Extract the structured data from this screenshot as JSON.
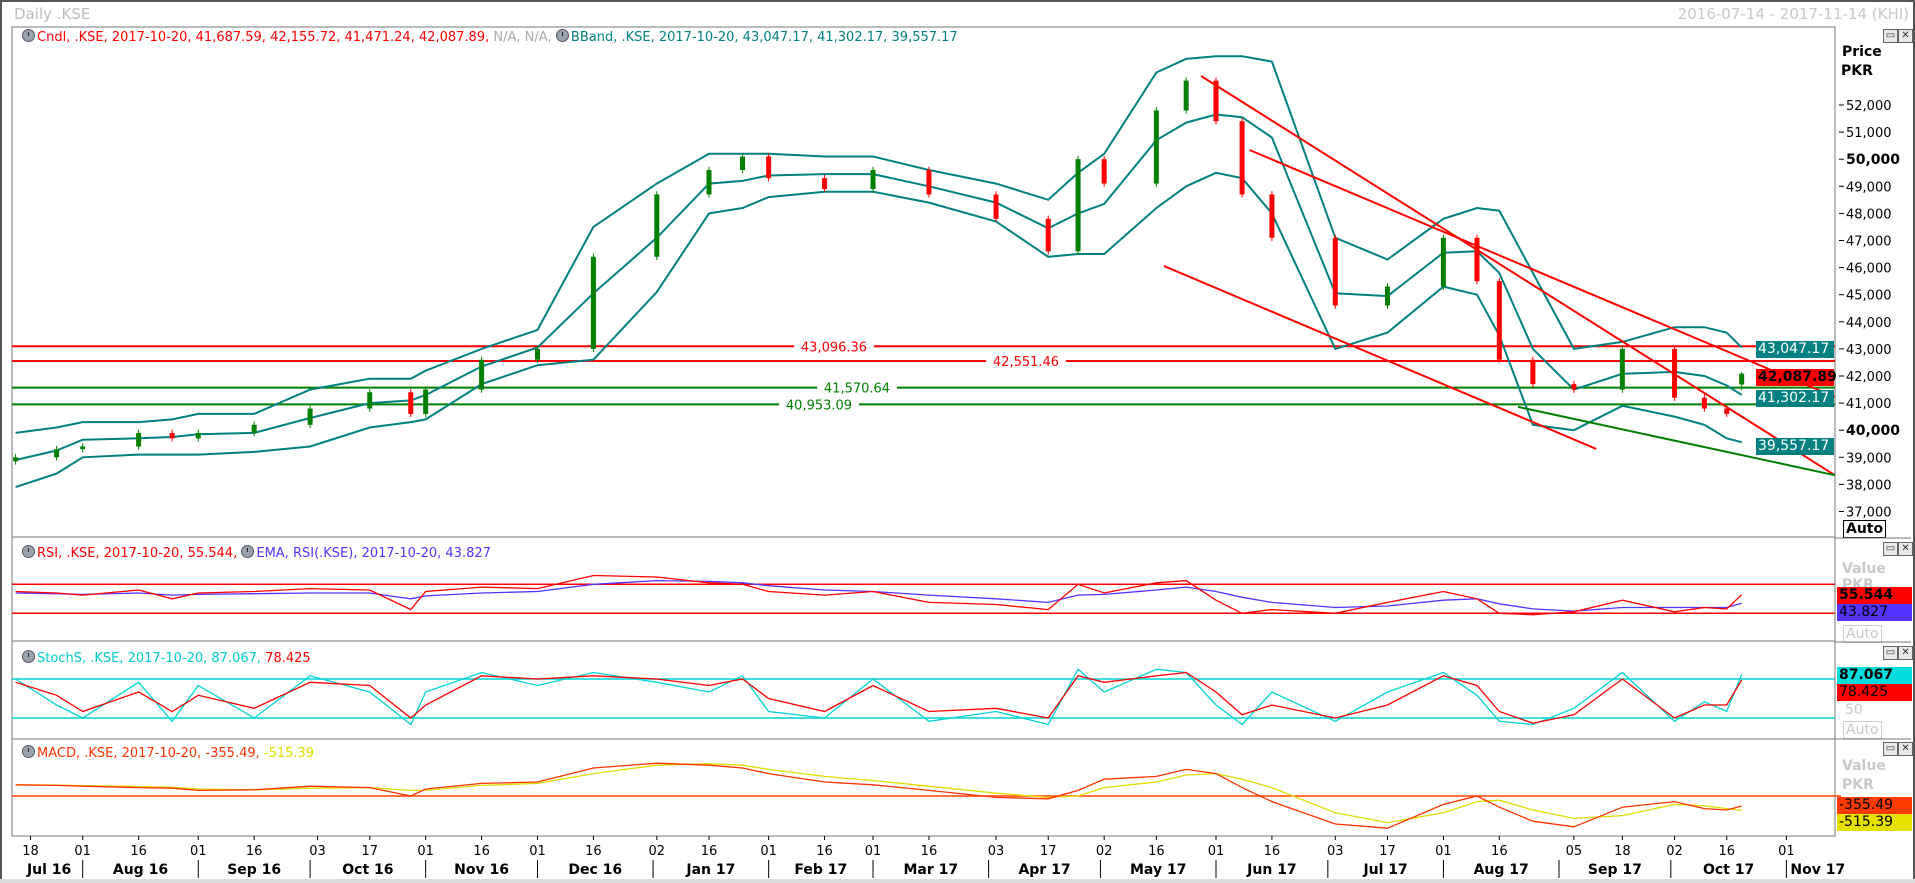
{
  "header": {
    "title": "Daily .KSE",
    "date_range": "2016-07-14 - 2017-11-14 (KHI)"
  },
  "legends": {
    "candle": "Cndl, .KSE, 2017-10-20, 41,687.59, 42,155.72, 41,471.24, 42,087.89,",
    "candle_na": "N/A, N/A,",
    "bband": "BBand, .KSE, 2017-10-20, 43,047.17, 41,302.17, 39,557.17",
    "rsi": "RSI, .KSE, 2017-10-20, 55.544,",
    "ema": "EMA, RSI(.KSE), 2017-10-20, 43.827",
    "stoch": "StochS, .KSE, 2017-10-20, 87.067,",
    "stoch_d": "78.425",
    "macd": "MACD, .KSE, 2017-10-20, -355.49,",
    "macd_signal": "-515.39"
  },
  "axis": {
    "price_title": "Price",
    "price_unit": "PKR",
    "value_title": "Value",
    "auto": "Auto",
    "stoch_mid": "50",
    "price_ticks": [
      "52,000",
      "51,000",
      "50,000",
      "49,000",
      "48,000",
      "47,000",
      "46,000",
      "45,000",
      "44,000",
      "43,000",
      "42,000",
      "41,000",
      "40,000",
      "39,000",
      "38,000",
      "37,000"
    ],
    "price_tick_values": [
      52000,
      51000,
      50000,
      49000,
      48000,
      47000,
      46000,
      45000,
      44000,
      43000,
      42000,
      41000,
      40000,
      39000,
      38000,
      37000
    ],
    "bold_ticks": [
      50000,
      40000
    ]
  },
  "last_values": {
    "bb_upper": "43,047.17",
    "close": "42,087.89",
    "bb_mid": "41,302.17",
    "bb_lower": "39,557.17",
    "rsi": "55.544",
    "ema": "43.827",
    "stoch_k": "87.067",
    "stoch_d": "78.425",
    "macd": "-355.49",
    "macd_signal": "-515.39"
  },
  "colors": {
    "up": "#008000",
    "down": "#ff0000",
    "bband": "#008080",
    "rsi": "#ff0000",
    "ema": "#5533ff",
    "stoch_k": "#00d4d4",
    "stoch_d": "#ff0000",
    "macd": "#ff3300",
    "macd_signal": "#e0dc00",
    "support": "#008000",
    "resistance": "#ff0000"
  },
  "x_axis": {
    "day_ticks": [
      [
        "2016-07-18",
        "18"
      ],
      [
        "2016-08-01",
        "01"
      ],
      [
        "2016-08-16",
        "16"
      ],
      [
        "2016-09-01",
        "01"
      ],
      [
        "2016-09-16",
        "16"
      ],
      [
        "2016-10-03",
        "03"
      ],
      [
        "2016-10-17",
        "17"
      ],
      [
        "2016-11-01",
        "01"
      ],
      [
        "2016-11-16",
        "16"
      ],
      [
        "2016-12-01",
        "01"
      ],
      [
        "2016-12-16",
        "16"
      ],
      [
        "2017-01-02",
        "02"
      ],
      [
        "2017-01-16",
        "16"
      ],
      [
        "2017-02-01",
        "01"
      ],
      [
        "2017-02-16",
        "16"
      ],
      [
        "2017-03-01",
        "01"
      ],
      [
        "2017-03-16",
        "16"
      ],
      [
        "2017-04-03",
        "03"
      ],
      [
        "2017-04-17",
        "17"
      ],
      [
        "2017-05-02",
        "02"
      ],
      [
        "2017-05-16",
        "16"
      ],
      [
        "2017-06-01",
        "01"
      ],
      [
        "2017-06-16",
        "16"
      ],
      [
        "2017-07-03",
        "03"
      ],
      [
        "2017-07-17",
        "17"
      ],
      [
        "2017-08-01",
        "01"
      ],
      [
        "2017-08-16",
        "16"
      ],
      [
        "2017-09-05",
        "05"
      ],
      [
        "2017-09-18",
        "18"
      ],
      [
        "2017-10-02",
        "02"
      ],
      [
        "2017-10-16",
        "16"
      ],
      [
        "2017-11-01",
        "01"
      ]
    ],
    "months": [
      [
        "2016-07-14",
        "Jul 16"
      ],
      [
        "2016-08-01",
        "Aug 16"
      ],
      [
        "2016-09-01",
        "Sep 16"
      ],
      [
        "2016-10-01",
        "Oct 16"
      ],
      [
        "2016-11-01",
        "Nov 16"
      ],
      [
        "2016-12-01",
        "Dec 16"
      ],
      [
        "2017-01-01",
        "Jan 17"
      ],
      [
        "2017-02-01",
        "Feb 17"
      ],
      [
        "2017-03-01",
        "Mar 17"
      ],
      [
        "2017-04-01",
        "Apr 17"
      ],
      [
        "2017-05-01",
        "May 17"
      ],
      [
        "2017-06-01",
        "Jun 17"
      ],
      [
        "2017-07-01",
        "Jul 17"
      ],
      [
        "2017-08-01",
        "Aug 17"
      ],
      [
        "2017-09-01",
        "Sep 17"
      ],
      [
        "2017-10-01",
        "Oct 17"
      ],
      [
        "2017-11-01",
        "Nov 17"
      ]
    ],
    "range": [
      "2016-07-14",
      "2017-11-14"
    ]
  },
  "chart_data": {
    "type": "candlestick",
    "ylim": [
      36800,
      54500
    ],
    "dates": [
      "2016-07-14",
      "2016-07-25",
      "2016-08-01",
      "2016-08-16",
      "2016-08-25",
      "2016-09-01",
      "2016-09-16",
      "2016-10-01",
      "2016-10-17",
      "2016-10-28",
      "2016-11-01",
      "2016-11-16",
      "2016-12-01",
      "2016-12-16",
      "2017-01-02",
      "2017-01-16",
      "2017-01-25",
      "2017-02-01",
      "2017-02-16",
      "2017-03-01",
      "2017-03-16",
      "2017-04-03",
      "2017-04-17",
      "2017-04-25",
      "2017-05-02",
      "2017-05-16",
      "2017-05-24",
      "2017-06-01",
      "2017-06-08",
      "2017-06-16",
      "2017-07-03",
      "2017-07-17",
      "2017-08-01",
      "2017-08-10",
      "2017-08-16",
      "2017-08-25",
      "2017-09-05",
      "2017-09-18",
      "2017-10-02",
      "2017-10-10",
      "2017-10-16",
      "2017-10-20"
    ],
    "close": [
      39000,
      39300,
      39400,
      39900,
      39700,
      39900,
      40200,
      40800,
      41400,
      40600,
      41500,
      42600,
      43000,
      46400,
      48700,
      49600,
      50100,
      49300,
      48900,
      49600,
      48700,
      47800,
      46600,
      50000,
      49100,
      51800,
      52900,
      51400,
      48700,
      47100,
      44600,
      45300,
      47100,
      45500,
      42600,
      41700,
      41500,
      43000,
      41200,
      40800,
      40600,
      42087.89
    ],
    "last_candle": {
      "open": 41687.59,
      "high": 42155.72,
      "low": 41471.24,
      "close": 42087.89
    },
    "bb_upper": [
      39900,
      40100,
      40300,
      40300,
      40400,
      40600,
      40600,
      41500,
      41900,
      41900,
      42200,
      43000,
      43700,
      47500,
      49100,
      50200,
      50200,
      50200,
      50100,
      50100,
      49600,
      49100,
      48500,
      49500,
      50200,
      53200,
      53700,
      53800,
      53800,
      53600,
      47100,
      46300,
      47800,
      48200,
      48100,
      45800,
      43000,
      43260,
      43800,
      43800,
      43600,
      43047.17
    ],
    "bb_lower": [
      37900,
      38400,
      39000,
      39100,
      39100,
      39100,
      39200,
      39400,
      40100,
      40300,
      40400,
      41700,
      42400,
      42600,
      45100,
      48000,
      48200,
      48600,
      48800,
      48800,
      48400,
      47700,
      46400,
      46500,
      46500,
      48200,
      49000,
      49500,
      49300,
      48000,
      43000,
      43600,
      45300,
      45000,
      43500,
      40200,
      40000,
      40900,
      40500,
      40200,
      39700,
      39557.17
    ],
    "hlines": [
      {
        "value": 43096.36,
        "label": "43,096.36",
        "kind": "resistance"
      },
      {
        "value": 42551.46,
        "label": "42,551.46",
        "kind": "resistance"
      },
      {
        "value": 41570.64,
        "label": "41,570.64",
        "kind": "support"
      },
      {
        "value": 40953.09,
        "label": "40,953.09",
        "kind": "support"
      }
    ],
    "trendlines": [
      {
        "kind": "resistance",
        "from": [
          "2017-05-28",
          53070
        ],
        "to": [
          "2017-11-14",
          38340
        ]
      },
      {
        "kind": "resistance",
        "from": [
          "2017-06-10",
          50340
        ],
        "to": [
          "2017-11-14",
          41230
        ]
      },
      {
        "kind": "resistance",
        "from": [
          "2017-05-18",
          46060
        ],
        "to": [
          "2017-09-11",
          39310
        ]
      },
      {
        "kind": "support",
        "from": [
          "2017-08-21",
          40860
        ],
        "to": [
          "2017-11-14",
          38340
        ]
      }
    ],
    "rsi": {
      "levels": [
        70,
        30
      ],
      "rsi": [
        60,
        58,
        55,
        62,
        50,
        58,
        60,
        64,
        62,
        35,
        60,
        66,
        64,
        82,
        80,
        72,
        70,
        60,
        55,
        60,
        45,
        42,
        35,
        70,
        58,
        72,
        75,
        48,
        30,
        35,
        30,
        45,
        60,
        50,
        30,
        28,
        32,
        48,
        32,
        38,
        36,
        55.544
      ],
      "ema": [
        58,
        57,
        56,
        58,
        55,
        56,
        57,
        58,
        58,
        50,
        54,
        58,
        60,
        70,
        75,
        74,
        72,
        68,
        62,
        60,
        55,
        50,
        45,
        55,
        56,
        62,
        66,
        60,
        52,
        45,
        38,
        40,
        48,
        50,
        43,
        36,
        33,
        38,
        38,
        38,
        38,
        43.827
      ]
    },
    "stoch": {
      "levels": [
        80,
        20
      ],
      "k": [
        80,
        40,
        20,
        75,
        15,
        70,
        20,
        85,
        60,
        10,
        60,
        90,
        70,
        90,
        75,
        60,
        85,
        30,
        20,
        80,
        15,
        30,
        10,
        95,
        60,
        95,
        90,
        40,
        10,
        60,
        15,
        60,
        90,
        55,
        15,
        10,
        35,
        90,
        15,
        45,
        30,
        87.067
      ],
      "d": [
        75,
        55,
        30,
        60,
        30,
        55,
        35,
        75,
        70,
        20,
        40,
        85,
        80,
        85,
        80,
        70,
        80,
        50,
        30,
        70,
        30,
        35,
        20,
        85,
        75,
        85,
        90,
        60,
        25,
        40,
        20,
        40,
        85,
        70,
        30,
        12,
        25,
        80,
        20,
        40,
        40,
        78.425
      ]
    },
    "macd": {
      "macd": [
        400,
        380,
        350,
        300,
        280,
        200,
        220,
        350,
        300,
        0,
        250,
        450,
        500,
        1000,
        1170,
        1100,
        1000,
        800,
        500,
        400,
        200,
        -50,
        -100,
        200,
        600,
        700,
        950,
        800,
        300,
        -200,
        -1000,
        -1150,
        -300,
        0,
        -400,
        -900,
        -1100,
        -400,
        -200,
        -450,
        -500,
        -355.49
      ],
      "signal": [
        400,
        390,
        370,
        340,
        310,
        250,
        220,
        280,
        300,
        200,
        200,
        380,
        450,
        800,
        1100,
        1150,
        1100,
        950,
        700,
        550,
        350,
        100,
        -50,
        0,
        300,
        500,
        750,
        800,
        600,
        300,
        -600,
        -950,
        -600,
        -200,
        -150,
        -500,
        -800,
        -700,
        -300,
        -350,
        -450,
        -515.39
      ]
    }
  }
}
